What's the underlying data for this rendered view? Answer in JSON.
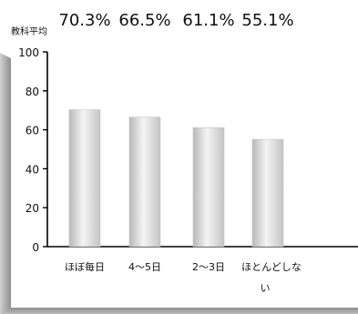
{
  "chart_data": {
    "type": "bar",
    "categories": [
      "ほぼ毎日",
      "4～5日",
      "2～3日",
      "ほとんどしない"
    ],
    "values": [
      70.3,
      66.5,
      61.1,
      55.1
    ],
    "value_labels": [
      "70.3%",
      "66.5%",
      "61.1%",
      "55.1%"
    ],
    "ylabel": "教科平均",
    "xlabel": "",
    "ylim": [
      0,
      100
    ],
    "yticks": [
      0,
      20,
      40,
      60,
      80,
      100
    ],
    "grid": false,
    "bar_color": "#d9d9d9",
    "frame_shadow_color": "#9e9e9e"
  }
}
